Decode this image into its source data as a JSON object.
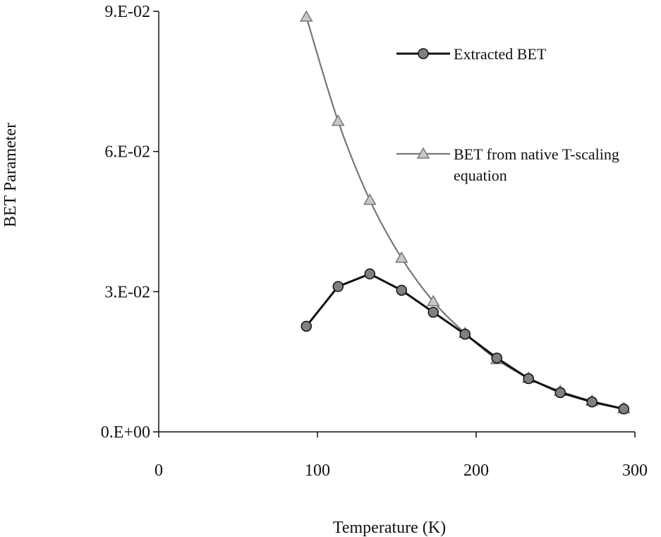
{
  "chart_data": {
    "type": "line",
    "title": "",
    "xlabel": "Temperature (K)",
    "ylabel": "BET Parameter",
    "xlim": [
      0,
      300
    ],
    "ylim": [
      0,
      0.09
    ],
    "x_ticks": [
      0,
      100,
      200,
      300
    ],
    "x_tick_labels": [
      "0",
      "100",
      "200",
      "300"
    ],
    "y_ticks": [
      0,
      0.03,
      0.06,
      0.09
    ],
    "y_tick_labels": [
      "0.E+00",
      "3.E-02",
      "6.E-02",
      "9.E-02"
    ],
    "grid": false,
    "legend_position": "top-right",
    "series": [
      {
        "name": "Extracted BET",
        "marker": "circle",
        "color": "#111111",
        "marker_fill": "#808080",
        "x": [
          93,
          113,
          133,
          153,
          173,
          193,
          213,
          233,
          253,
          273,
          293
        ],
        "y": [
          0.0226,
          0.0311,
          0.0338,
          0.0303,
          0.0256,
          0.0209,
          0.0158,
          0.0114,
          0.0084,
          0.0064,
          0.0049
        ]
      },
      {
        "name": "BET from native T-scaling equation",
        "marker": "triangle",
        "color": "#777777",
        "marker_fill": "#c8c8c8",
        "x": [
          93,
          113,
          133,
          153,
          173,
          193,
          213,
          233,
          253,
          273,
          293
        ],
        "y": [
          0.0888,
          0.0665,
          0.0496,
          0.0372,
          0.0279,
          0.0211,
          0.0155,
          0.0115,
          0.0087,
          0.0066,
          0.005
        ]
      }
    ]
  }
}
